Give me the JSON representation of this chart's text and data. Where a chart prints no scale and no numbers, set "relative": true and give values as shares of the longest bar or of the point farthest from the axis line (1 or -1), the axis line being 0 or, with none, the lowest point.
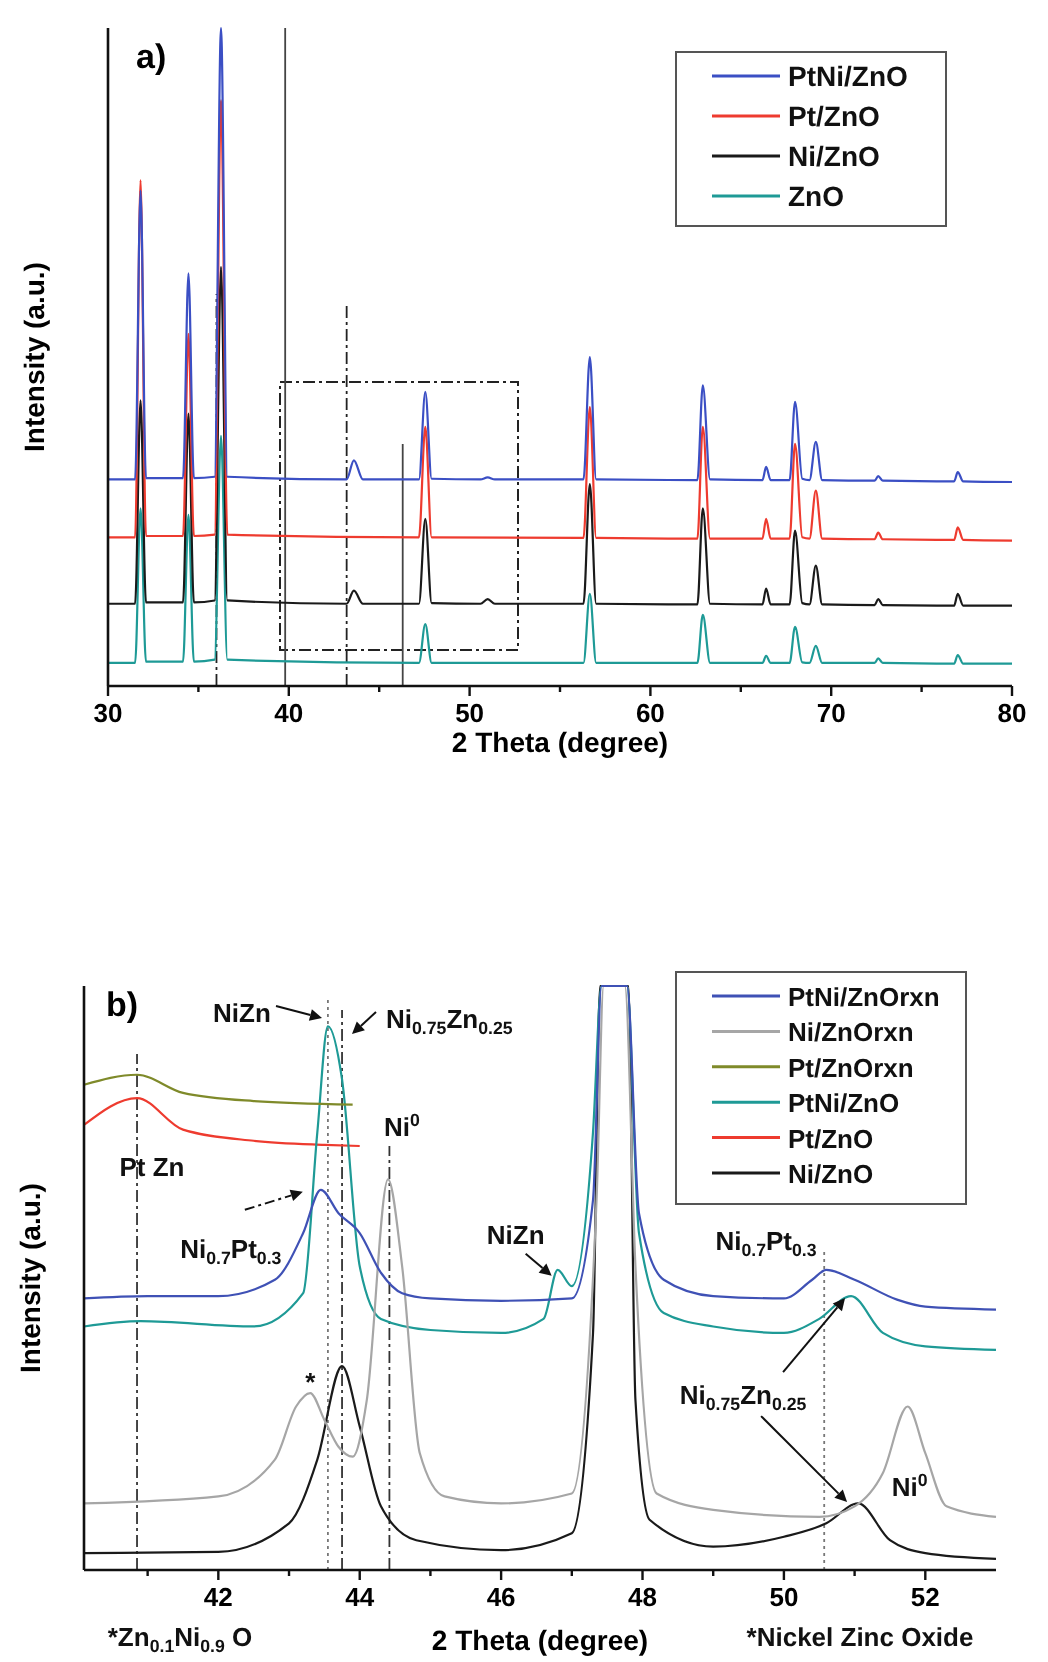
{
  "chart_data": [
    {
      "type": "line",
      "title": "a)",
      "xlabel": "2 Theta (degree)",
      "ylabel": "Intensity (a.u.)",
      "relative": true,
      "xlim": [
        30,
        80
      ],
      "xticks": [
        30,
        {
          "value": 35,
          "label": null
        },
        40,
        {
          "value": 45,
          "label": null
        },
        50,
        {
          "value": 55,
          "label": null
        },
        60,
        {
          "value": 65,
          "label": null
        },
        70,
        {
          "value": 75,
          "label": null
        },
        80
      ],
      "legend": "top right",
      "series": [
        {
          "name": "PtNi/ZnO",
          "color": "#3b4fc4",
          "x": [
            30,
            31.5,
            31.8,
            32.1,
            34.15,
            34.45,
            34.75,
            35.9,
            36.25,
            36.6,
            43.2,
            43.6,
            44.1,
            47.2,
            47.55,
            47.9,
            50.6,
            51,
            51.4,
            56.3,
            56.65,
            57.0,
            62.6,
            62.9,
            63.3,
            66.2,
            66.4,
            66.65,
            67.7,
            68.0,
            68.4,
            68.8,
            69.15,
            69.5,
            72.4,
            72.6,
            72.85,
            76.8,
            77.0,
            77.3,
            80
          ],
          "values": [
            0.314,
            0.314,
            0.753,
            0.316,
            0.316,
            0.627,
            0.316,
            0.318,
            1,
            0.318,
            0.314,
            0.343,
            0.314,
            0.314,
            0.447,
            0.315,
            0.314,
            0.317,
            0.314,
            0.314,
            0.5,
            0.314,
            0.313,
            0.457,
            0.314,
            0.313,
            0.333,
            0.313,
            0.313,
            0.432,
            0.315,
            0.313,
            0.371,
            0.313,
            0.312,
            0.319,
            0.312,
            0.311,
            0.325,
            0.311,
            0.31
          ]
        },
        {
          "name": "Pt/ZnO",
          "color": "#ee3b2f",
          "x": [
            30,
            31.5,
            31.8,
            32.1,
            34.15,
            34.45,
            34.75,
            35.9,
            36.25,
            36.6,
            47.2,
            47.55,
            47.9,
            56.3,
            56.65,
            57.0,
            62.6,
            62.9,
            63.3,
            66.2,
            66.4,
            66.65,
            67.7,
            68.0,
            68.4,
            68.8,
            69.15,
            69.5,
            72.4,
            72.6,
            72.85,
            76.8,
            77.0,
            77.3,
            80
          ],
          "values": [
            0.226,
            0.226,
            0.769,
            0.228,
            0.228,
            0.535,
            0.228,
            0.23,
            0.89,
            0.23,
            0.226,
            0.394,
            0.226,
            0.225,
            0.424,
            0.225,
            0.224,
            0.394,
            0.224,
            0.224,
            0.254,
            0.224,
            0.224,
            0.368,
            0.226,
            0.224,
            0.297,
            0.224,
            0.223,
            0.233,
            0.223,
            0.222,
            0.241,
            0.222,
            0.221
          ]
        },
        {
          "name": "Ni/ZnO",
          "color": "#1a1a1a",
          "x": [
            30,
            31.5,
            31.8,
            32.1,
            34.15,
            34.45,
            34.75,
            35.9,
            36.25,
            36.6,
            43.2,
            43.6,
            44.1,
            47.2,
            47.55,
            47.9,
            50.6,
            51,
            51.4,
            56.3,
            56.65,
            57.0,
            62.6,
            62.9,
            63.3,
            66.2,
            66.4,
            66.65,
            67.7,
            68.0,
            68.4,
            68.8,
            69.15,
            69.5,
            72.4,
            72.6,
            72.85,
            76.8,
            77.0,
            77.3,
            80
          ],
          "values": [
            0.125,
            0.125,
            0.434,
            0.127,
            0.127,
            0.414,
            0.127,
            0.13,
            0.637,
            0.13,
            0.125,
            0.145,
            0.125,
            0.125,
            0.254,
            0.126,
            0.125,
            0.132,
            0.125,
            0.125,
            0.307,
            0.125,
            0.124,
            0.27,
            0.125,
            0.124,
            0.148,
            0.124,
            0.124,
            0.236,
            0.126,
            0.124,
            0.183,
            0.124,
            0.123,
            0.132,
            0.123,
            0.122,
            0.14,
            0.122,
            0.122
          ]
        },
        {
          "name": "ZnO",
          "color": "#1e9a96",
          "x": [
            30,
            31.5,
            31.8,
            32.1,
            34.15,
            34.45,
            34.75,
            35.9,
            36.25,
            36.6,
            47.2,
            47.55,
            47.9,
            56.3,
            56.65,
            57.0,
            62.6,
            62.9,
            63.3,
            66.2,
            66.4,
            66.65,
            67.7,
            68.0,
            68.4,
            68.8,
            69.15,
            69.5,
            72.4,
            72.6,
            72.85,
            76.8,
            77.0,
            77.3,
            80
          ],
          "values": [
            0.035,
            0.035,
            0.27,
            0.037,
            0.037,
            0.26,
            0.037,
            0.04,
            0.38,
            0.04,
            0.035,
            0.094,
            0.035,
            0.035,
            0.14,
            0.035,
            0.035,
            0.108,
            0.035,
            0.035,
            0.046,
            0.035,
            0.035,
            0.09,
            0.036,
            0.035,
            0.061,
            0.035,
            0.035,
            0.042,
            0.035,
            0.034,
            0.047,
            0.034,
            0.034
          ]
        }
      ],
      "ref_lines": [
        {
          "axis": "x",
          "value": 36.0,
          "line_style": "dashed",
          "color": "#222222"
        },
        {
          "axis": "x",
          "value": 39.8,
          "line_style": "solid",
          "color": "#444444"
        },
        {
          "axis": "x",
          "value": 43.2,
          "line_style": "dashed",
          "color": "#222222"
        },
        {
          "axis": "x",
          "value": 46.3,
          "line_style": "solid",
          "color": "#444444"
        }
      ]
    },
    {
      "type": "line",
      "title": "b)",
      "xlabel": "2 Theta (degree)",
      "ylabel": "Intensity (a.u.)",
      "relative": true,
      "xlim": [
        40.1,
        53
      ],
      "xticks": [
        {
          "value": 41,
          "label": null
        },
        42,
        {
          "value": 43,
          "label": null
        },
        44,
        {
          "value": 45,
          "label": null
        },
        46,
        {
          "value": 47,
          "label": null
        },
        48,
        {
          "value": 49,
          "label": null
        },
        50,
        {
          "value": 51,
          "label": null
        },
        52
      ],
      "legend": "top right",
      "series": [
        {
          "name": "PtNi/ZnOrxn",
          "color": "#3f51b5",
          "x": [
            40.1,
            41,
            42,
            42.8,
            43.2,
            43.45,
            43.7,
            44.0,
            44.3,
            44.6,
            45,
            46,
            47,
            47.3,
            47.42,
            47.78,
            47.95,
            48.3,
            49,
            50,
            50.4,
            50.6,
            51,
            51.6,
            52,
            53
          ],
          "values": [
            0.465,
            0.469,
            0.469,
            0.497,
            0.577,
            0.651,
            0.611,
            0.577,
            0.509,
            0.474,
            0.465,
            0.461,
            0.465,
            0.634,
            1,
            1,
            0.611,
            0.497,
            0.469,
            0.465,
            0.497,
            0.514,
            0.497,
            0.463,
            0.451,
            0.446
          ]
        },
        {
          "name": "Ni/ZnOrxn",
          "color": "#a6a6a6",
          "x": [
            40.1,
            42,
            42.8,
            43.1,
            43.3,
            43.5,
            43.7,
            43.9,
            44.1,
            44.4,
            44.6,
            44.85,
            45.2,
            46,
            47,
            47.35,
            47.45,
            47.75,
            47.9,
            48.2,
            49,
            50.5,
            51,
            51.4,
            51.75,
            52.0,
            52.3,
            53
          ],
          "values": [
            0.114,
            0.126,
            0.189,
            0.28,
            0.303,
            0.257,
            0.211,
            0.194,
            0.291,
            0.669,
            0.52,
            0.2,
            0.126,
            0.114,
            0.131,
            0.634,
            1,
            1,
            0.52,
            0.131,
            0.103,
            0.091,
            0.109,
            0.166,
            0.28,
            0.2,
            0.109,
            0.091
          ]
        },
        {
          "name": "Pt/ZnOrxn",
          "color": "#7f8a2a",
          "x": [
            40.1,
            40.85,
            41.5,
            42.5,
            43.9
          ],
          "values": [
            0.831,
            0.848,
            0.817,
            0.803,
            0.797
          ]
        },
        {
          "name": "PtNi/ZnO",
          "color": "#1e9a96",
          "x": [
            40.1,
            40.9,
            42.5,
            43.2,
            43.4,
            43.55,
            43.75,
            44.0,
            44.3,
            45,
            46,
            46.6,
            46.8,
            47.0,
            47.3,
            47.42,
            47.78,
            47.95,
            48.3,
            49,
            50,
            50.5,
            50.95,
            51.4,
            52,
            53
          ],
          "values": [
            0.417,
            0.426,
            0.417,
            0.474,
            0.749,
            0.931,
            0.84,
            0.52,
            0.43,
            0.411,
            0.406,
            0.43,
            0.514,
            0.486,
            0.75,
            1,
            1,
            0.577,
            0.44,
            0.417,
            0.406,
            0.43,
            0.469,
            0.406,
            0.383,
            0.377
          ]
        },
        {
          "name": "Pt/ZnO",
          "color": "#ee3b2f",
          "x": [
            40.1,
            40.85,
            41.5,
            42.5,
            43.5,
            44.0
          ],
          "values": [
            0.762,
            0.808,
            0.754,
            0.735,
            0.728,
            0.726
          ]
        },
        {
          "name": "Ni/ZnO",
          "color": "#1a1a1a",
          "x": [
            40.1,
            42,
            43,
            43.4,
            43.75,
            44.0,
            44.3,
            44.8,
            46,
            47,
            47.3,
            47.4,
            47.8,
            47.9,
            48.1,
            49,
            50,
            50.6,
            51.05,
            51.5,
            52,
            53
          ],
          "values": [
            0.029,
            0.031,
            0.08,
            0.189,
            0.349,
            0.246,
            0.109,
            0.051,
            0.034,
            0.063,
            0.406,
            1,
            1,
            0.291,
            0.086,
            0.04,
            0.057,
            0.08,
            0.114,
            0.051,
            0.029,
            0.019
          ]
        }
      ],
      "ref_lines": [
        {
          "axis": "x",
          "value": 40.85,
          "label": "Pt Zn",
          "line_style": "dashed",
          "color": "#333333"
        },
        {
          "axis": "x",
          "value": 43.55,
          "label": "NiZn",
          "line_style": "dotted",
          "color": "#777777"
        },
        {
          "axis": "x",
          "value": 43.75,
          "label": "Ni$_{0.75}$Zn$_{0.25}$",
          "line_style": "dashed",
          "color": "#333333"
        },
        {
          "axis": "x",
          "value": 44.42,
          "label": "Ni$^{0}$",
          "line_style": "dashed",
          "color": "#333333"
        },
        {
          "axis": "x",
          "value": 50.57,
          "label": "Ni$_{0.7}$Pt$_{0.3}$",
          "line_style": "dotted",
          "color": "#777777"
        }
      ],
      "annotations": [
        {
          "text": "*",
          "x": 43.3,
          "y": 0.303
        },
        {
          "text": "Ni$_{0.7}$Pt$_{0.3}$",
          "x": 43.45,
          "y": 0.651
        },
        {
          "text": "NiZn",
          "x": 46.8,
          "y": 0.514
        },
        {
          "text": "Ni$_{0.75}$Zn$_{0.25}$",
          "x": 50.95,
          "y": 0.469
        },
        {
          "text": "Ni$^{0}$",
          "x": 51.75,
          "y": 0.28
        },
        "*Zn$_{0.1}$Ni$_{0.9}$ O",
        "*Nickel Zinc Oxide"
      ]
    }
  ]
}
